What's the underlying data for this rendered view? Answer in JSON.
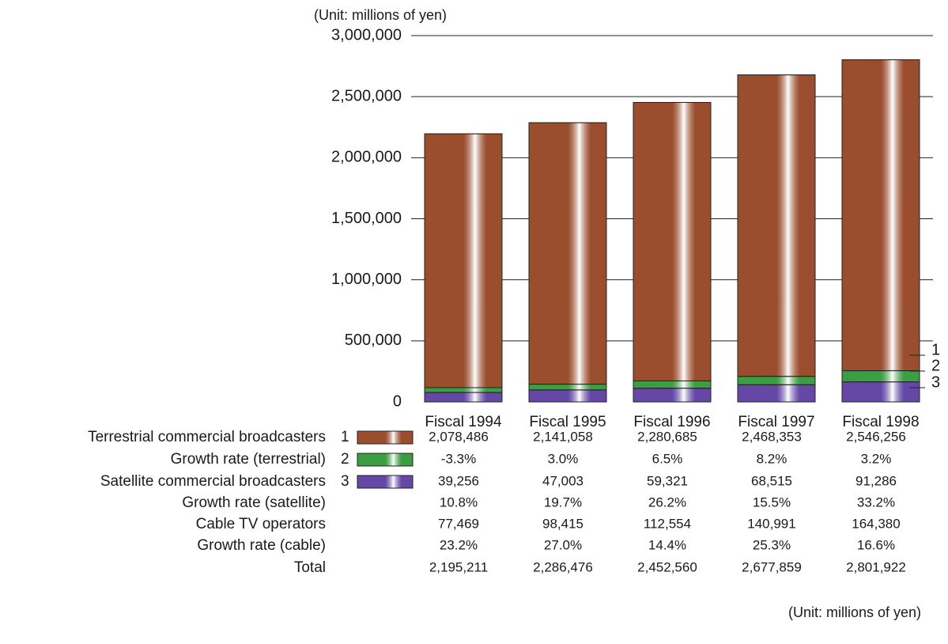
{
  "chart_data": {
    "type": "bar",
    "stacked": true,
    "unit": "(Unit: millions of yen)",
    "categories": [
      "Fiscal 1994",
      "Fiscal 1995",
      "Fiscal 1996",
      "Fiscal 1997",
      "Fiscal 1998"
    ],
    "ylim": [
      0,
      3000000
    ],
    "yticks": [
      0,
      {
        "value": 500000,
        "label": "500,000"
      },
      {
        "value": 1000000,
        "label": "1,000,000"
      },
      {
        "value": 1500000,
        "label": "1,500,000"
      },
      {
        "value": 2000000,
        "label": "2,000,000"
      },
      {
        "value": 2500000,
        "label": "2,500,000"
      },
      {
        "value": 3000000,
        "label": "3,000,000"
      }
    ],
    "grid": true,
    "series": [
      {
        "name": "Cable TV operators",
        "marker": "3",
        "color": "#6548a6",
        "values": [
          77469,
          98415,
          112554,
          140991,
          164380
        ],
        "value_labels": [
          "77,469",
          "98,415",
          "112,554",
          "140,991",
          "164,380"
        ],
        "growth_name": "Growth rate (cable)",
        "growth_labels": [
          "23.2%",
          "27.0%",
          "14.4%",
          "25.3%",
          "16.6%"
        ]
      },
      {
        "name": "Satellite commercial broadcasters",
        "marker": "2",
        "color": "#3c9e44",
        "values": [
          39256,
          47003,
          59321,
          68515,
          91286
        ],
        "value_labels": [
          "39,256",
          "47,003",
          "59,321",
          "68,515",
          "91,286"
        ],
        "growth_name": "Growth rate (satellite)",
        "growth_labels": [
          "10.8%",
          "19.7%",
          "26.2%",
          "15.5%",
          "33.2%"
        ]
      },
      {
        "name": "Terrestrial commercial broadcasters",
        "marker": "1",
        "color": "#9a4e2e",
        "values": [
          2078486,
          2141058,
          2280685,
          2468353,
          2546256
        ],
        "value_labels": [
          "2,078,486",
          "2,141,058",
          "2,280,685",
          "2,468,353",
          "2,546,256"
        ],
        "growth_name": "Growth rate (terrestrial)",
        "growth_labels": [
          "-3.3%",
          "3.0%",
          "6.5%",
          "8.2%",
          "3.2%"
        ]
      }
    ],
    "total": {
      "name": "Total",
      "labels": [
        "2,195,211",
        "2,286,476",
        "2,452,560",
        "2,677,859",
        "2,801,922"
      ]
    }
  }
}
